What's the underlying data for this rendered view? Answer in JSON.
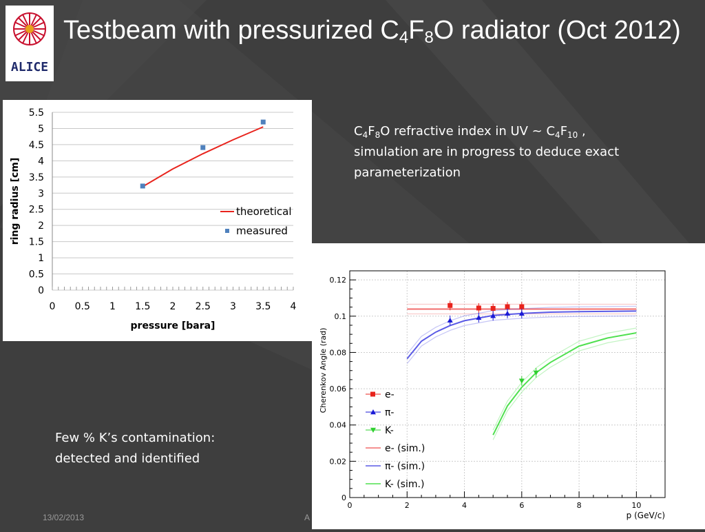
{
  "slide": {
    "title_parts": [
      "Testbeam with pressurized C",
      "4",
      "F",
      "8",
      "O radiator (Oct 2012)"
    ],
    "logo_text": "ALICE",
    "note1_parts": [
      "C",
      "4",
      "F",
      "8",
      "O refractive index in UV ~ C",
      "4",
      "F",
      "10",
      " , simulation are in progress to deduce exact parameterization"
    ],
    "note2_line1": "Few % K’s contamination:",
    "note2_line2": "detected and identified",
    "footer_date": "13/02/2013",
    "footer_fragment": "A"
  },
  "chart_data": [
    {
      "type": "scatter",
      "xlabel": "pressure [bara]",
      "ylabel": "ring radius [cm]",
      "xlim": [
        0,
        4
      ],
      "ylim": [
        0,
        5.5
      ],
      "xticks": [
        "0",
        "0.5",
        "1",
        "1.5",
        "2",
        "2.5",
        "3",
        "3.5",
        "4"
      ],
      "yticks": [
        "0",
        "0.5",
        "1",
        "1.5",
        "2",
        "2.5",
        "3",
        "3.5",
        "4",
        "4.5",
        "5",
        "5.5"
      ],
      "grid": true,
      "legend_position": "right",
      "series": [
        {
          "name": "theoretical",
          "kind": "line",
          "color": "#e8231c",
          "x": [
            1.5,
            2.0,
            2.5,
            3.0,
            3.5
          ],
          "y": [
            3.2,
            3.75,
            4.22,
            4.65,
            5.05
          ]
        },
        {
          "name": "measured",
          "kind": "marker",
          "color": "#4f81bd",
          "x": [
            1.5,
            2.5,
            3.5
          ],
          "y": [
            3.22,
            4.41,
            5.2
          ]
        }
      ]
    },
    {
      "type": "scatter",
      "xlabel": "p (GeV/c)",
      "ylabel": "Cherenkov Angle (rad)",
      "xlim": [
        0,
        11
      ],
      "ylim": [
        0,
        0.125
      ],
      "xticks": [
        "0",
        "2",
        "4",
        "6",
        "8",
        "10"
      ],
      "yticks": [
        "0",
        "0.02",
        "0.04",
        "0.06",
        "0.08",
        "0.1",
        "0.12"
      ],
      "grid": true,
      "legend_position": "left",
      "series": [
        {
          "name": "e-",
          "kind": "marker",
          "marker": "square",
          "color": "#e8231c",
          "x": [
            3.5,
            4.5,
            5.0,
            5.5,
            6.0
          ],
          "y": [
            0.1059,
            0.1045,
            0.1043,
            0.1052,
            0.1052
          ]
        },
        {
          "name": "π-",
          "kind": "marker",
          "marker": "triangle-up",
          "color": "#1a1ad6",
          "x": [
            3.5,
            4.5,
            5.0,
            5.5,
            6.0
          ],
          "y": [
            0.0977,
            0.0992,
            0.1002,
            0.1015,
            0.1015
          ]
        },
        {
          "name": "K-",
          "kind": "marker",
          "marker": "triangle-down",
          "color": "#2fd02f",
          "x": [
            6.0,
            6.5
          ],
          "y": [
            0.0643,
            0.0688
          ]
        },
        {
          "name": "e- (sim.)",
          "kind": "line",
          "color": "#f26b6b",
          "x": [
            2,
            4,
            6,
            8,
            10
          ],
          "y": [
            0.1039,
            0.1039,
            0.1039,
            0.1039,
            0.1039
          ]
        },
        {
          "name": "π- (sim.)",
          "kind": "line",
          "color": "#5a5ae6",
          "x": [
            2,
            2.5,
            3,
            3.5,
            4,
            5,
            6,
            7,
            8,
            10
          ],
          "y": [
            0.0765,
            0.0862,
            0.0912,
            0.0948,
            0.0975,
            0.1004,
            0.1015,
            0.1022,
            0.1025,
            0.1028
          ]
        },
        {
          "name": "K- (sim.)",
          "kind": "line",
          "color": "#4fe04f",
          "x": [
            5.0,
            5.5,
            6.0,
            6.5,
            7.0,
            8.0,
            9.0,
            10.0
          ],
          "y": [
            0.0345,
            0.0505,
            0.0608,
            0.0688,
            0.0745,
            0.0835,
            0.088,
            0.0908
          ]
        }
      ]
    }
  ]
}
